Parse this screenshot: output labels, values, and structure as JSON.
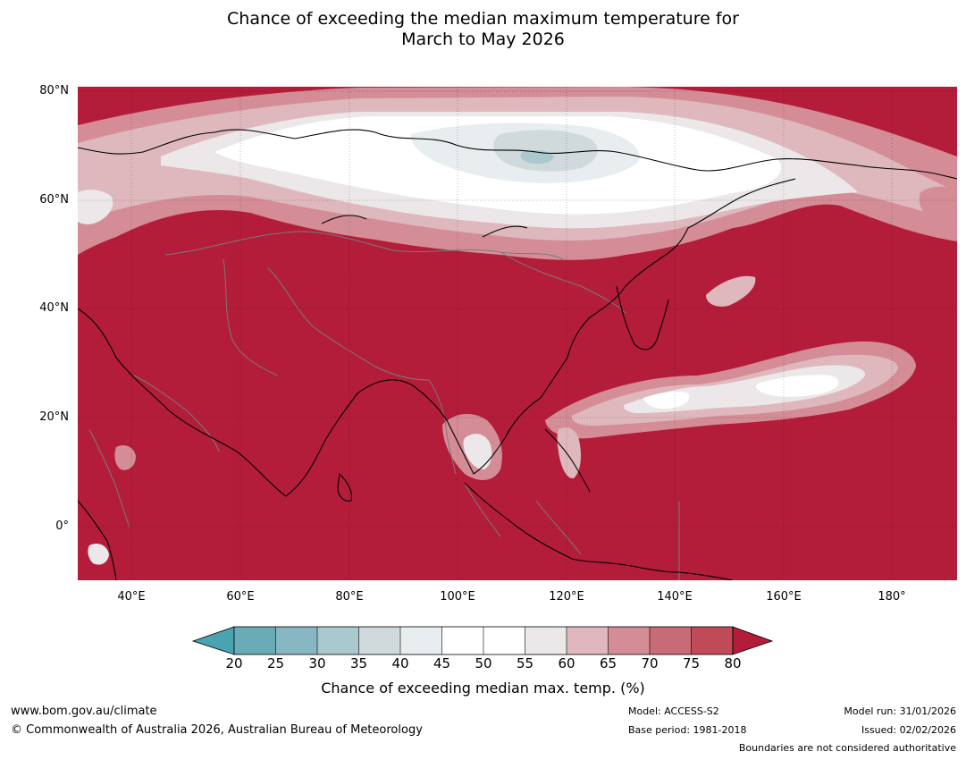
{
  "title_line1": "Chance of exceeding the median maximum temperature for",
  "title_line2": "March to May 2026",
  "latitude_labels": [
    "80°N",
    "60°N",
    "40°N",
    "20°N",
    "0°"
  ],
  "longitude_labels": [
    "40°E",
    "60°E",
    "80°E",
    "100°E",
    "120°E",
    "140°E",
    "160°E",
    "180°"
  ],
  "colorbar": {
    "ticks": [
      "20",
      "25",
      "30",
      "35",
      "40",
      "45",
      "50",
      "55",
      "60",
      "65",
      "70",
      "75",
      "80"
    ],
    "colors": [
      "#6aabb8",
      "#86b7c2",
      "#a9c9cf",
      "#d0d9dc",
      "#e8eef0",
      "#ffffff",
      "#ffffff",
      "#ece8ea",
      "#dfb8bd",
      "#d48d97",
      "#c96a77",
      "#c14a58"
    ],
    "low_color": "#4aa3b1",
    "high_color": "#b31d3a",
    "title": "Chance of exceeding median max. temp. (%)"
  },
  "map": {
    "background_color": "#b31d3a",
    "coastline_color": "#000000",
    "border_color": "#7a7a7a"
  },
  "footer": {
    "website": "www.bom.gov.au/climate",
    "copyright": "© Commonwealth of Australia 2026, Australian Bureau of Meteorology",
    "model": "Model: ACCESS-S2",
    "base_period": "Base period: 1981-2018",
    "model_run": "Model run: 31/01/2026",
    "issued": "Issued: 02/02/2026",
    "disclaimer": "Boundaries are not considered authoritative"
  }
}
